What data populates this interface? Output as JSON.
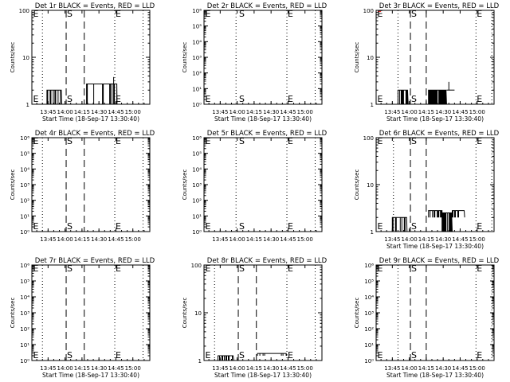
{
  "figure": {
    "background": "#ffffff",
    "events_color": "#000000",
    "lld_color": "#ff0000"
  },
  "chart_data": [
    {
      "type": "line",
      "title": "Det 1r BLACK = Events, RED = LLD",
      "ylabel": "Counts/sec",
      "xlabel": "Start Time (18-Sep-17 13:30:40)",
      "xlim": [
        "13:30:40",
        "15:15:00"
      ],
      "x_ticks": [
        "13:45",
        "14:00",
        "14:15",
        "14:30",
        "14:45",
        "15:00"
      ],
      "ylim": [
        1,
        100
      ],
      "yscale": "log",
      "y_ticks": [
        "1",
        "10",
        "100"
      ],
      "markers": [
        {
          "label": "E",
          "time": "13:31"
        },
        {
          "label": "S",
          "time": "14:01"
        },
        {
          "label": "E",
          "time": "14:44"
        }
      ],
      "dotted_lines": [
        "13:40",
        "14:44",
        "15:09"
      ],
      "dashed_lines": [
        "14:01",
        "14:17"
      ],
      "series": [
        {
          "color": "#000000",
          "segments": [
            {
              "start": "13:44",
              "end": "13:57",
              "baseline": 1,
              "level": 2,
              "flicker": "med"
            },
            {
              "start": "14:19",
              "end": "14:46",
              "baseline": 1,
              "level": 2.7,
              "flicker": "low",
              "spikes": [
                {
                  "time": "14:43",
                  "value": 3.8
                }
              ]
            }
          ]
        },
        {
          "color": "#ff0000",
          "segments": []
        }
      ]
    },
    {
      "type": "line",
      "title": "Det 2r BLACK = Events, RED = LLD",
      "ylabel": "Counts/sec",
      "xlabel": "Start Time (18-Sep-17 13:30:40)",
      "xlim": [
        "13:30:40",
        "15:15:00"
      ],
      "x_ticks": [
        "13:45",
        "14:00",
        "14:15",
        "14:30",
        "14:45",
        "15:00"
      ],
      "ylim": [
        1,
        1000000
      ],
      "yscale": "log",
      "y_ticks": [
        "10⁰",
        "10¹",
        "10²",
        "10³",
        "10⁴",
        "10⁵",
        "10⁶"
      ],
      "markers": [
        {
          "label": "E",
          "time": "13:31"
        },
        {
          "label": "S",
          "time": "14:01"
        },
        {
          "label": "E",
          "time": "14:44"
        }
      ],
      "dotted_lines": [
        "13:59",
        "14:44",
        "15:09"
      ],
      "dashed_lines": [],
      "series": [
        {
          "color": "#000000",
          "segments": []
        },
        {
          "color": "#ff0000",
          "segments": []
        }
      ]
    },
    {
      "type": "line",
      "title": "Det 3r BLACK = Events, RED = LLD",
      "ylabel": "Counts/sec",
      "xlabel": "Start Time (18-Sep-17 13:30:40)",
      "xlim": [
        "13:30:40",
        "15:15:00"
      ],
      "x_ticks": [
        "13:45",
        "14:00",
        "14:15",
        "14:30",
        "14:45",
        "15:00"
      ],
      "ylim": [
        1,
        100
      ],
      "yscale": "log",
      "y_ticks": [
        "1",
        "10",
        "100"
      ],
      "markers": [
        {
          "label": "E",
          "time": "13:31"
        },
        {
          "label": "S",
          "time": "14:01"
        },
        {
          "label": "E",
          "time": "14:59"
        }
      ],
      "dotted_lines": [
        "13:50",
        "14:59",
        "15:13"
      ],
      "dashed_lines": [
        "14:01",
        "14:15"
      ],
      "series": [
        {
          "color": "#000000",
          "segments": [
            {
              "start": "13:50",
              "end": "13:59",
              "baseline": 1,
              "level": 2,
              "flicker": "med"
            },
            {
              "start": "14:17",
              "end": "14:33",
              "baseline": 1,
              "level": 2,
              "flicker": "high"
            },
            {
              "start": "14:33",
              "end": "14:40",
              "baseline": 2,
              "level": 2,
              "flicker": "none",
              "spikes": [
                {
                  "time": "14:35",
                  "value": 3
                }
              ]
            }
          ]
        },
        {
          "color": "#ff0000",
          "segments": [
            {
              "start": "13:32",
              "end": "13:35",
              "baseline": 95,
              "level": 95,
              "flicker": "none"
            }
          ]
        }
      ]
    },
    {
      "type": "line",
      "title": "Det 4r BLACK = Events, RED = LLD",
      "ylabel": "Counts/sec",
      "xlabel": "",
      "xlim": [
        "13:30:40",
        "15:15:00"
      ],
      "x_ticks": [
        "13:45",
        "14:00",
        "14:15",
        "14:30",
        "14:45",
        "15:00"
      ],
      "ylim": [
        1,
        1000000
      ],
      "yscale": "log",
      "y_ticks": [
        "10⁰",
        "10¹",
        "10²",
        "10³",
        "10⁴",
        "10⁵",
        "10⁶"
      ],
      "markers": [
        {
          "label": "E",
          "time": "13:31"
        },
        {
          "label": "S",
          "time": "14:01"
        },
        {
          "label": "E",
          "time": "14:44"
        }
      ],
      "dotted_lines": [
        "13:40",
        "14:44",
        "15:09"
      ],
      "dashed_lines": [
        "14:01",
        "14:17"
      ],
      "series": [
        {
          "color": "#000000",
          "segments": []
        },
        {
          "color": "#ff0000",
          "segments": []
        }
      ]
    },
    {
      "type": "line",
      "title": "Det 5r BLACK = Events, RED = LLD",
      "ylabel": "Counts/sec",
      "xlabel": "",
      "xlim": [
        "13:30:40",
        "15:15:00"
      ],
      "x_ticks": [
        "13:45",
        "14:00",
        "14:15",
        "14:30",
        "14:45",
        "15:00"
      ],
      "ylim": [
        1,
        1000000
      ],
      "yscale": "log",
      "y_ticks": [
        "10⁰",
        "10¹",
        "10²",
        "10³",
        "10⁴",
        "10⁵",
        "10⁶"
      ],
      "markers": [
        {
          "label": "E",
          "time": "13:31"
        },
        {
          "label": "S",
          "time": "14:01"
        },
        {
          "label": "E",
          "time": "14:44"
        }
      ],
      "dotted_lines": [
        "13:59",
        "14:44",
        "15:09"
      ],
      "dashed_lines": [],
      "series": [
        {
          "color": "#000000",
          "segments": []
        },
        {
          "color": "#ff0000",
          "segments": []
        }
      ]
    },
    {
      "type": "line",
      "title": "Det 6r BLACK = Events, RED = LLD",
      "ylabel": "Counts/sec",
      "xlabel": "Start Time (18-Sep-17 13:30:40)",
      "xlim": [
        "13:30:40",
        "15:15:00"
      ],
      "x_ticks": [
        "13:45",
        "14:00",
        "14:15",
        "14:30",
        "14:45",
        "15:00"
      ],
      "ylim": [
        1,
        100
      ],
      "yscale": "log",
      "y_ticks": [
        "1",
        "10",
        "100"
      ],
      "markers": [
        {
          "label": "E",
          "time": "13:31"
        },
        {
          "label": "S",
          "time": "14:01"
        },
        {
          "label": "E",
          "time": "14:59"
        }
      ],
      "dotted_lines": [
        "13:46",
        "14:59",
        "15:13"
      ],
      "dashed_lines": [
        "14:01",
        "14:15"
      ],
      "series": [
        {
          "color": "#000000",
          "segments": [
            {
              "start": "13:45",
              "end": "13:58",
              "baseline": 1,
              "level": 2,
              "flicker": "med"
            },
            {
              "start": "14:17",
              "end": "14:29",
              "baseline": 2,
              "level": 2.8,
              "flicker": "med"
            },
            {
              "start": "14:29",
              "end": "14:38",
              "baseline": 1,
              "level": 2.5,
              "flicker": "high"
            },
            {
              "start": "14:38",
              "end": "14:49",
              "baseline": 2,
              "level": 2.8,
              "flicker": "med"
            }
          ]
        },
        {
          "color": "#ff0000",
          "segments": []
        }
      ]
    },
    {
      "type": "line",
      "title": "Det 7r BLACK = Events, RED = LLD",
      "ylabel": "Counts/sec",
      "xlabel": "Start Time (18-Sep-17 13:30:40)",
      "xlim": [
        "13:30:40",
        "15:15:00"
      ],
      "x_ticks": [
        "13:45",
        "14:00",
        "14:15",
        "14:30",
        "14:45",
        "15:00"
      ],
      "ylim": [
        1,
        1000000
      ],
      "yscale": "log",
      "y_ticks": [
        "10⁰",
        "10¹",
        "10²",
        "10³",
        "10⁴",
        "10⁵",
        "10⁶"
      ],
      "markers": [
        {
          "label": "E",
          "time": "13:31"
        },
        {
          "label": "S",
          "time": "14:01"
        },
        {
          "label": "E",
          "time": "14:44"
        }
      ],
      "dotted_lines": [
        "13:40",
        "14:44",
        "15:09"
      ],
      "dashed_lines": [
        "14:01",
        "14:17"
      ],
      "series": [
        {
          "color": "#000000",
          "segments": []
        },
        {
          "color": "#ff0000",
          "segments": []
        }
      ]
    },
    {
      "type": "line",
      "title": "Det 8r BLACK = Events, RED = LLD",
      "ylabel": "Counts/sec",
      "xlabel": "Start Time (18-Sep-17 13:30:40)",
      "xlim": [
        "13:30:40",
        "15:15:00"
      ],
      "x_ticks": [
        "13:45",
        "14:00",
        "14:15",
        "14:30",
        "14:45",
        "15:00"
      ],
      "ylim": [
        1,
        1000000
      ],
      "yscale": "log",
      "y_ticks": [
        "1",
        "10",
        "100"
      ],
      "markers": [
        {
          "label": "E",
          "time": "13:31"
        },
        {
          "label": "S",
          "time": "14:01"
        },
        {
          "label": "E",
          "time": "14:44"
        }
      ],
      "dotted_lines": [
        "13:40",
        "14:44",
        "15:09"
      ],
      "dashed_lines": [
        "14:01",
        "14:17"
      ],
      "series": [
        {
          "color": "#000000",
          "segments": [
            {
              "start": "13:43",
              "end": "13:57",
              "baseline": 1,
              "level": 2,
              "flicker": "med"
            },
            {
              "start": "14:18",
              "end": "14:44",
              "baseline": 2,
              "level": 2.8,
              "flicker": "low"
            }
          ]
        },
        {
          "color": "#ff0000",
          "segments": []
        }
      ]
    },
    {
      "type": "line",
      "title": "Det 9r BLACK = Events, RED = LLD",
      "ylabel": "Counts/sec",
      "xlabel": "Start Time (18-Sep-17 13:30:40)",
      "xlim": [
        "13:30:40",
        "15:15:00"
      ],
      "x_ticks": [
        "13:45",
        "14:00",
        "14:15",
        "14:30",
        "14:45",
        "15:00"
      ],
      "ylim": [
        1,
        1000000
      ],
      "yscale": "log",
      "y_ticks": [
        "10⁰",
        "10¹",
        "10²",
        "10³",
        "10⁴",
        "10⁵",
        "10⁶"
      ],
      "markers": [
        {
          "label": "E",
          "time": "13:31"
        },
        {
          "label": "S",
          "time": "14:01"
        },
        {
          "label": "E",
          "time": "14:59"
        }
      ],
      "dotted_lines": [
        "13:50",
        "14:59",
        "15:13"
      ],
      "dashed_lines": [
        "14:01",
        "14:15"
      ],
      "series": [
        {
          "color": "#000000",
          "segments": []
        },
        {
          "color": "#ff0000",
          "segments": []
        }
      ]
    }
  ]
}
